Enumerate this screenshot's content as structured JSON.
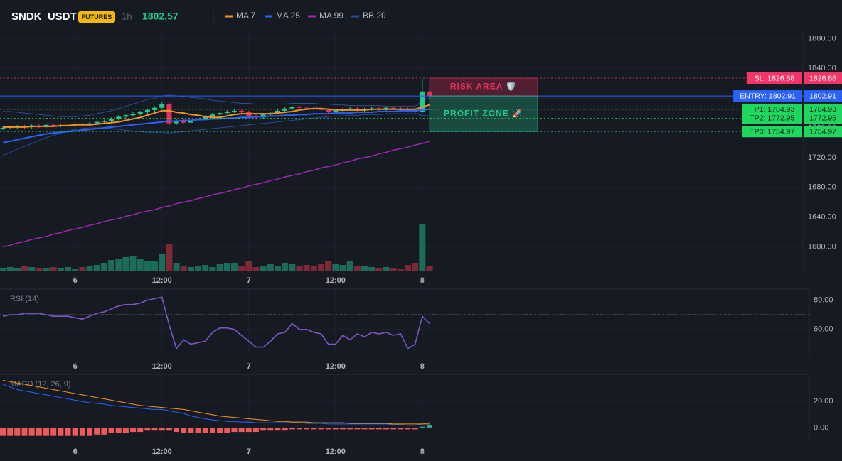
{
  "header": {
    "symbol": "SNDK_USDT",
    "badge": "FUTURES",
    "interval": "1h",
    "price": 1802.57
  },
  "chart_data": [
    {
      "type": "candlestick",
      "categories": [
        null,
        null,
        null,
        null,
        null,
        null,
        null,
        null,
        null,
        null,
        "6",
        null,
        null,
        null,
        null,
        null,
        null,
        null,
        null,
        null,
        null,
        null,
        "12:00",
        null,
        null,
        null,
        null,
        null,
        null,
        null,
        null,
        null,
        null,
        null,
        "7",
        null,
        null,
        null,
        null,
        null,
        null,
        null,
        null,
        null,
        null,
        null,
        "12:00",
        null,
        null,
        null,
        null,
        null,
        null,
        null,
        null,
        null,
        null,
        null,
        "8",
        null
      ],
      "open": [
        1759,
        1760,
        1761,
        1762,
        1761,
        1763,
        1762,
        1764,
        1763,
        1763,
        1764,
        1765,
        1764,
        1766,
        1768,
        1769,
        1772,
        1775,
        1777,
        1779,
        1781,
        1784,
        1787,
        1792,
        1766,
        1770,
        1767,
        1770,
        1772,
        1775,
        1778,
        1780,
        1782,
        1783,
        1781,
        1776,
        1774,
        1778,
        1780,
        1783,
        1786,
        1788,
        1787,
        1786,
        1785,
        1784,
        1781,
        1783,
        1785,
        1786,
        1784,
        1785,
        1786,
        1785,
        1787,
        1786,
        1785,
        1784,
        1782,
        1809
      ],
      "high": [
        1762,
        1763,
        1764,
        1764,
        1765,
        1765,
        1766,
        1766,
        1765,
        1766,
        1767,
        1767,
        1768,
        1770,
        1771,
        1774,
        1777,
        1779,
        1781,
        1783,
        1786,
        1789,
        1795,
        1795,
        1772,
        1772,
        1772,
        1774,
        1777,
        1780,
        1782,
        1784,
        1785,
        1785,
        1783,
        1778,
        1780,
        1782,
        1785,
        1788,
        1790,
        1790,
        1789,
        1788,
        1787,
        1786,
        1785,
        1787,
        1788,
        1788,
        1787,
        1788,
        1788,
        1789,
        1789,
        1788,
        1787,
        1786,
        1826,
        1811
      ],
      "low": [
        1757,
        1758,
        1759,
        1759,
        1759,
        1760,
        1760,
        1761,
        1761,
        1761,
        1762,
        1762,
        1762,
        1764,
        1766,
        1767,
        1770,
        1773,
        1775,
        1777,
        1779,
        1782,
        1785,
        1763,
        1764,
        1765,
        1765,
        1768,
        1770,
        1773,
        1776,
        1778,
        1780,
        1779,
        1774,
        1771,
        1772,
        1776,
        1778,
        1781,
        1784,
        1785,
        1784,
        1783,
        1782,
        1779,
        1779,
        1781,
        1783,
        1782,
        1782,
        1783,
        1783,
        1783,
        1784,
        1783,
        1782,
        1779,
        1780,
        1800
      ],
      "close": [
        1760,
        1761,
        1762,
        1761,
        1763,
        1762,
        1764,
        1763,
        1763,
        1764,
        1765,
        1764,
        1766,
        1768,
        1769,
        1772,
        1775,
        1777,
        1779,
        1781,
        1784,
        1787,
        1792,
        1766,
        1770,
        1767,
        1770,
        1772,
        1775,
        1778,
        1780,
        1782,
        1783,
        1781,
        1776,
        1774,
        1778,
        1780,
        1783,
        1786,
        1788,
        1787,
        1786,
        1785,
        1784,
        1781,
        1783,
        1785,
        1786,
        1784,
        1785,
        1786,
        1785,
        1787,
        1786,
        1785,
        1784,
        1781,
        1809,
        1802.57
      ],
      "volume": [
        5,
        6,
        5,
        8,
        6,
        5,
        5,
        6,
        5,
        6,
        4,
        6,
        8,
        9,
        12,
        16,
        18,
        20,
        22,
        18,
        14,
        15,
        24,
        38,
        12,
        8,
        6,
        7,
        9,
        6,
        10,
        12,
        12,
        8,
        14,
        6,
        8,
        10,
        8,
        12,
        11,
        7,
        9,
        8,
        10,
        14,
        11,
        9,
        14,
        7,
        8,
        6,
        5,
        6,
        5,
        4,
        9,
        12,
        66,
        8
      ],
      "up_color": "#22c98a",
      "down_color": "#e8305a",
      "volume_up_color": "#1d6b5a",
      "volume_down_color": "#7d2a36",
      "series": [
        {
          "name": "MA 7",
          "color": "#f7931a",
          "values": [
            1761,
            1761,
            1761,
            1761,
            1762,
            1762,
            1762,
            1762,
            1763,
            1763,
            1764,
            1764,
            1764,
            1765,
            1766,
            1767,
            1768,
            1770,
            1772,
            1774,
            1777,
            1780,
            1783,
            1783,
            1781,
            1780,
            1778,
            1777,
            1775,
            1774,
            1774,
            1776,
            1778,
            1779,
            1779,
            1779,
            1779,
            1779,
            1780,
            1781,
            1782,
            1784,
            1785,
            1786,
            1786,
            1785,
            1784,
            1784,
            1784,
            1784,
            1784,
            1785,
            1785,
            1785,
            1785,
            1785,
            1785,
            1785,
            1788,
            1791
          ]
        },
        {
          "name": "MA 25",
          "color": "#2962ff",
          "values": [
            1740,
            1742,
            1744,
            1746,
            1748,
            1750,
            1752,
            1753,
            1754,
            1755,
            1756,
            1757,
            1758,
            1759,
            1760,
            1761,
            1762,
            1763,
            1764,
            1765,
            1766,
            1767,
            1768,
            1769,
            1769,
            1770,
            1770,
            1771,
            1771,
            1772,
            1772,
            1773,
            1773,
            1774,
            1774,
            1775,
            1775,
            1776,
            1776,
            1777,
            1777,
            1778,
            1778,
            1779,
            1779,
            1779,
            1780,
            1780,
            1780,
            1781,
            1781,
            1781,
            1782,
            1782,
            1782,
            1783,
            1783,
            1783,
            1784,
            1785
          ]
        },
        {
          "name": "MA 99",
          "color": "#9c27b0",
          "values": [
            1600,
            1602,
            1605,
            1607,
            1610,
            1612,
            1614,
            1617,
            1619,
            1622,
            1624,
            1626,
            1629,
            1631,
            1634,
            1636,
            1638,
            1641,
            1643,
            1646,
            1648,
            1650,
            1653,
            1655,
            1658,
            1660,
            1662,
            1665,
            1667,
            1670,
            1672,
            1674,
            1677,
            1679,
            1682,
            1684,
            1686,
            1689,
            1691,
            1694,
            1696,
            1698,
            1701,
            1703,
            1706,
            1708,
            1710,
            1713,
            1715,
            1718,
            1720,
            1722,
            1725,
            1727,
            1730,
            1732,
            1734,
            1737,
            1739,
            1742
          ]
        },
        {
          "name": "BB 20",
          "color": "#2a4a9a",
          "upper": [
            1782,
            1782,
            1781,
            1780,
            1779,
            1778,
            1777,
            1776,
            1775,
            1775,
            1775,
            1776,
            1777,
            1779,
            1781,
            1783,
            1786,
            1789,
            1792,
            1795,
            1798,
            1800,
            1803,
            1804,
            1803,
            1802,
            1801,
            1800,
            1799,
            1797,
            1796,
            1795,
            1794,
            1793,
            1793,
            1792,
            1792,
            1792,
            1792,
            1792,
            1793,
            1793,
            1793,
            1793,
            1792,
            1792,
            1791,
            1791,
            1790,
            1790,
            1790,
            1790,
            1790,
            1789,
            1789,
            1789,
            1789,
            1789,
            1796,
            1800
          ],
          "lower": [
            1723,
            1727,
            1731,
            1735,
            1739,
            1743,
            1747,
            1750,
            1753,
            1756,
            1758,
            1759,
            1760,
            1760,
            1760,
            1759,
            1758,
            1757,
            1756,
            1755,
            1754,
            1754,
            1754,
            1753,
            1754,
            1755,
            1756,
            1757,
            1758,
            1759,
            1760,
            1761,
            1762,
            1763,
            1764,
            1765,
            1766,
            1767,
            1768,
            1769,
            1770,
            1771,
            1772,
            1773,
            1774,
            1775,
            1776,
            1776,
            1777,
            1777,
            1778,
            1778,
            1778,
            1779,
            1779,
            1779,
            1779,
            1779,
            1777,
            1776
          ]
        }
      ],
      "ylim": [
        1566,
        1889
      ],
      "yticks": [
        {
          "value": 1600,
          "label": "1600.00"
        },
        {
          "value": 1640,
          "label": "1640.00"
        },
        {
          "value": 1680,
          "label": "1680.00"
        },
        {
          "value": 1720,
          "label": "1720.00"
        },
        {
          "value": 1760,
          "label": "1760.00"
        },
        {
          "value": 1800,
          "label": "1800.00"
        },
        {
          "value": 1840,
          "label": "1840.00"
        },
        {
          "value": 1880,
          "label": "1880.00"
        }
      ],
      "grid": true,
      "levels": [
        {
          "label": "SL: 1826.88",
          "value": 1826.88,
          "color": "#f23667",
          "text_color": "#ffffff",
          "style": "dotted"
        },
        {
          "label": "ENTRY: 1802.91",
          "value": 1802.91,
          "color": "#2962ff",
          "text_color": "#ffffff",
          "style": "solid"
        },
        {
          "label": "TP1: 1784.93",
          "value": 1784.93,
          "color": "#1fd65f",
          "text_color": "#0b1a10",
          "style": "dotted"
        },
        {
          "label": "TP2: 1772.95",
          "value": 1772.95,
          "color": "#1fd65f",
          "text_color": "#0b1a10",
          "style": "dotted"
        },
        {
          "label": "TP3: 1754.97",
          "value": 1754.97,
          "color": "#1fd65f",
          "text_color": "#0b1a10",
          "style": "dotted"
        }
      ],
      "zones": [
        {
          "label": "RISK AREA 🛡️",
          "color": "#e8305a"
        },
        {
          "label": "PROFIT ZONE 🚀",
          "color": "#22c98a"
        }
      ]
    },
    {
      "type": "line",
      "title": "RSI (14)",
      "color": "#7e57c2",
      "values": [
        69,
        70,
        70,
        71,
        71,
        71,
        70,
        69,
        69,
        69,
        68,
        67,
        69,
        71,
        72,
        74,
        76,
        77,
        77,
        78,
        80,
        81,
        82,
        63,
        47,
        53,
        50,
        51,
        52,
        58,
        61,
        61,
        60,
        56,
        52,
        48,
        48,
        52,
        57,
        58,
        64,
        60,
        60,
        58,
        57,
        50,
        50,
        56,
        53,
        57,
        55,
        58,
        57,
        58,
        56,
        57,
        47,
        50,
        69,
        64
      ],
      "ylim": [
        42,
        87
      ],
      "yticks": [
        {
          "value": 60,
          "label": "60.00"
        },
        {
          "value": 80,
          "label": "80.00"
        }
      ],
      "reference_line": 70,
      "grid": true
    },
    {
      "type": "macd",
      "title": "MACD (12, 26, 9)",
      "series": [
        {
          "color": "#2962ff",
          "values": [
            33,
            31,
            29,
            28,
            27,
            26,
            25,
            24,
            23,
            22,
            21,
            20,
            19,
            18.5,
            18,
            17,
            16.5,
            16,
            15.5,
            15,
            14.5,
            14,
            14,
            13,
            12,
            11,
            9,
            8,
            7,
            6,
            5.5,
            5,
            5,
            4.5,
            4.5,
            4,
            4,
            4,
            4,
            4,
            4,
            4,
            3.5,
            3.5,
            3.5,
            3,
            3,
            3,
            3,
            3,
            3,
            3,
            3,
            3,
            2.5,
            2.5,
            2,
            2,
            3,
            4
          ]
        },
        {
          "color": "#f7931a",
          "values": [
            36,
            35,
            34,
            33,
            32,
            31,
            30,
            29,
            28,
            27,
            26,
            25,
            24,
            23,
            22,
            21,
            20,
            19,
            18,
            17,
            16.5,
            16,
            15.5,
            15,
            14.5,
            14,
            13,
            12,
            11,
            10,
            9,
            8.5,
            8,
            7.5,
            7,
            6.5,
            6,
            5.5,
            5,
            5,
            4.5,
            4.5,
            4.5,
            4,
            4,
            4,
            4,
            4,
            3.5,
            3.5,
            3.5,
            3.5,
            3.5,
            3.5,
            3,
            3,
            3,
            3,
            3,
            3
          ]
        }
      ],
      "histogram": {
        "color": "#f05a5a",
        "positive_color": "#26a69a",
        "values": [
          -6,
          -6,
          -6,
          -6,
          -6,
          -6,
          -6,
          -6,
          -6,
          -6,
          -6,
          -6,
          -6,
          -5,
          -5,
          -4,
          -4,
          -4,
          -3,
          -3,
          -2,
          -2,
          -2,
          -2,
          -3,
          -4,
          -4,
          -4,
          -4,
          -4,
          -4,
          -4,
          -3,
          -3,
          -3,
          -3,
          -2,
          -2,
          -2,
          -2,
          -1,
          -1,
          -1,
          -1,
          -1,
          -1,
          -1,
          -1,
          -1,
          -1,
          -1,
          -1,
          -1,
          -1,
          -1,
          -1,
          -1,
          -1,
          1,
          2
        ]
      },
      "ylim": [
        -11,
        40
      ],
      "yticks": [
        {
          "value": 0,
          "label": "0.00"
        },
        {
          "value": 20,
          "label": "20.00"
        }
      ],
      "grid": true
    }
  ]
}
